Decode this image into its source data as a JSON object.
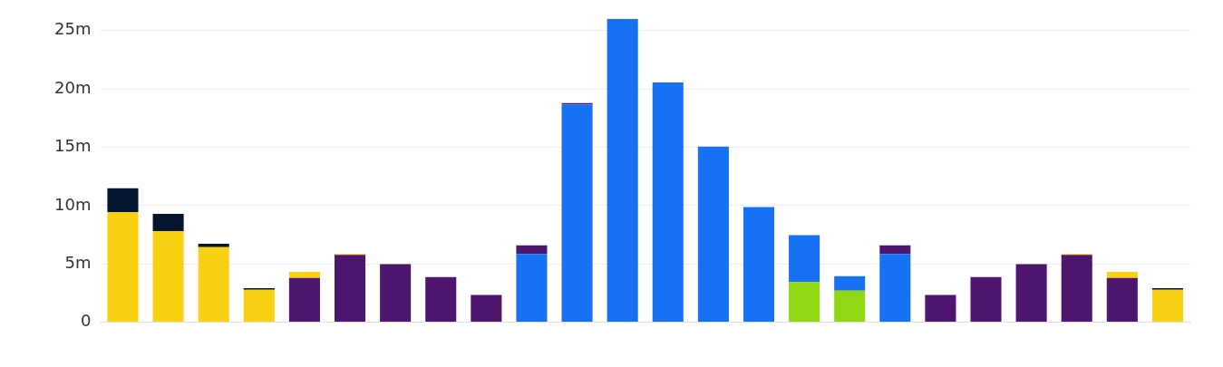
{
  "chart_data": {
    "type": "bar",
    "stacked": true,
    "categories": [
      null,
      null,
      null,
      null,
      null,
      null,
      null,
      null,
      null,
      null,
      null,
      null,
      null,
      null,
      null,
      null,
      null,
      null,
      null,
      null,
      null,
      null,
      null,
      null
    ],
    "series": [
      {
        "color": "#8fd813",
        "values": [
          null,
          null,
          null,
          null,
          null,
          null,
          null,
          null,
          null,
          null,
          null,
          null,
          null,
          null,
          null,
          3.44,
          2.7,
          null,
          null,
          null,
          null,
          null,
          null,
          null
        ]
      },
      {
        "color": "#1672f3",
        "values": [
          null,
          null,
          null,
          null,
          null,
          null,
          null,
          null,
          null,
          5.85,
          18.64,
          26.0,
          20.54,
          15.06,
          9.87,
          4.02,
          1.25,
          5.85,
          null,
          null,
          null,
          null,
          null,
          null
        ]
      },
      {
        "color": "#4e166f",
        "values": [
          null,
          null,
          null,
          null,
          3.8,
          5.77,
          4.97,
          3.87,
          2.34,
          0.73,
          0.15,
          null,
          null,
          null,
          null,
          null,
          null,
          0.73,
          2.34,
          3.87,
          4.97,
          5.77,
          3.8,
          null
        ]
      },
      {
        "color": "#f9d113",
        "values": [
          9.43,
          7.82,
          6.43,
          2.78,
          0.51,
          0.08,
          null,
          null,
          null,
          null,
          null,
          null,
          null,
          null,
          null,
          null,
          null,
          null,
          null,
          null,
          null,
          0.08,
          0.51,
          2.78
        ]
      },
      {
        "color": "#04162f",
        "values": [
          2.05,
          1.46,
          0.3,
          0.14,
          null,
          null,
          null,
          null,
          null,
          null,
          null,
          null,
          null,
          null,
          null,
          null,
          null,
          null,
          null,
          null,
          null,
          null,
          null,
          0.14
        ]
      }
    ],
    "ylim": [
      0,
      26
    ],
    "yticks": [
      0,
      {
        "value": 5,
        "label": "5m"
      },
      {
        "value": 10,
        "label": "10m"
      },
      {
        "value": 15,
        "label": "15m"
      },
      {
        "value": 20,
        "label": "20m"
      },
      {
        "value": 25,
        "label": "25m"
      }
    ],
    "grid": "y",
    "legend": false
  }
}
